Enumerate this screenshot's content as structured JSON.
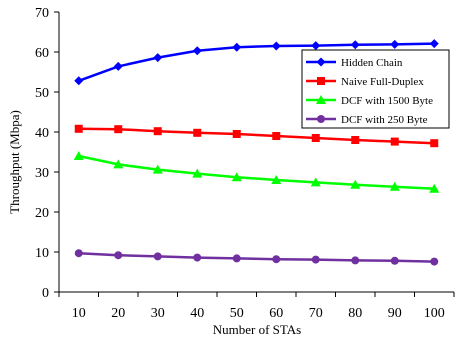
{
  "chart_data": {
    "type": "line",
    "title": "",
    "xlabel": "Number of STAs",
    "ylabel": "Throughput (Mbpa)",
    "x": [
      10,
      20,
      30,
      40,
      50,
      60,
      70,
      80,
      90,
      100
    ],
    "x_ticks": [
      "10",
      "20",
      "30",
      "40",
      "50",
      "60",
      "70",
      "80",
      "90",
      "100"
    ],
    "ylim": [
      0,
      70
    ],
    "y_ticks": [
      "0",
      "10",
      "20",
      "30",
      "40",
      "50",
      "60",
      "70"
    ],
    "grid": false,
    "legend_position": "top-right",
    "series": [
      {
        "name": "Hidden Chain",
        "color": "#0000ff",
        "marker": "diamond",
        "values": [
          52.8,
          56.4,
          58.6,
          60.3,
          61.2,
          61.5,
          61.6,
          61.8,
          61.9,
          62.1
        ]
      },
      {
        "name": "Naive Full-Duplex",
        "color": "#ff0000",
        "marker": "square",
        "values": [
          40.8,
          40.7,
          40.2,
          39.8,
          39.5,
          39.0,
          38.5,
          38.0,
          37.6,
          37.2
        ]
      },
      {
        "name": "DCF with 1500 Byte",
        "color": "#00ff00",
        "marker": "triangle",
        "values": [
          34.0,
          31.9,
          30.6,
          29.6,
          28.7,
          28.0,
          27.4,
          26.8,
          26.3,
          25.8
        ]
      },
      {
        "name": "DCF with 250 Byte",
        "color": "#7030a0",
        "marker": "circle",
        "values": [
          9.7,
          9.2,
          8.9,
          8.6,
          8.4,
          8.2,
          8.1,
          7.9,
          7.8,
          7.6
        ]
      }
    ]
  }
}
